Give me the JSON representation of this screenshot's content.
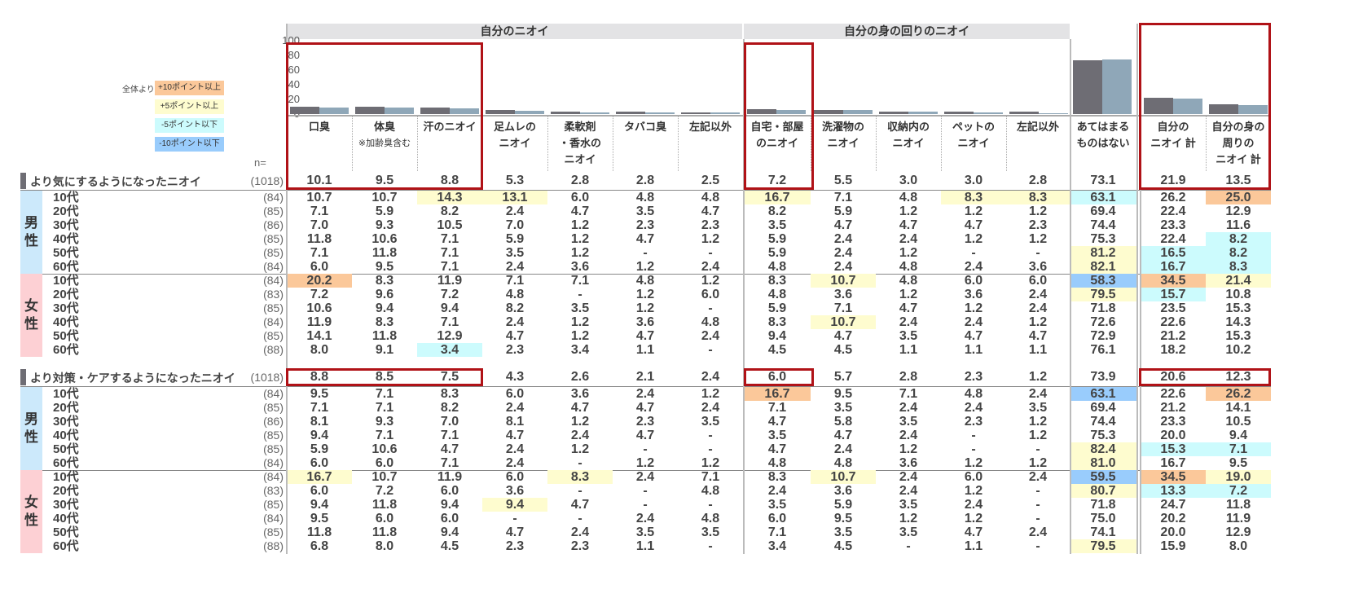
{
  "colors": {
    "series1": "#6e6d74",
    "series2": "#8fa7b8",
    "orange": "#fbc89a",
    "yellow": "#fefccf",
    "cyan": "#ccfbfd",
    "blue": "#99ccfc",
    "male_bg": "#cce9fb",
    "female_bg": "#fdd0d4",
    "highlight_box": "#b01217"
  },
  "legend": {
    "prefix": "全体より",
    "items": [
      {
        "code": "o",
        "label": "+10ポイント以上"
      },
      {
        "code": "y",
        "label": "+5ポイント以上"
      },
      {
        "code": "c",
        "label": "-5ポイント以下"
      },
      {
        "code": "b",
        "label": "-10ポイント以下"
      }
    ]
  },
  "groups": [
    {
      "label": "自分のニオイ"
    },
    {
      "label": "自分の身の回りのニオイ"
    }
  ],
  "columns": [
    {
      "label": "口臭"
    },
    {
      "label": "体臭",
      "sub": "※加齢臭含む"
    },
    {
      "label": "汗のニオイ"
    },
    {
      "label": "足ムレの\nニオイ"
    },
    {
      "label": "柔軟剤\n・香水の\nニオイ"
    },
    {
      "label": "タバコ臭"
    },
    {
      "label": "左記以外"
    },
    {
      "label": "自宅・部屋\nのニオイ"
    },
    {
      "label": "洗濯物の\nニオイ"
    },
    {
      "label": "収納内の\nニオイ"
    },
    {
      "label": "ペットの\nニオイ"
    },
    {
      "label": "左記以外"
    },
    {
      "label": "あてはまる\nものはない"
    },
    {
      "label": "自分の\nニオイ 計"
    },
    {
      "label": "自分の身の\n周りの\nニオイ 計"
    }
  ],
  "n_label": "n=",
  "chart_data": {
    "type": "bar",
    "ylim": [
      0,
      100
    ],
    "yticks": [
      "100",
      "80",
      "60",
      "40",
      "20",
      "0"
    ],
    "categories": [
      "口臭",
      "体臭",
      "汗のニオイ",
      "足ムレのニオイ",
      "柔軟剤・香水のニオイ",
      "タバコ臭",
      "左記以外",
      "自宅・部屋のニオイ",
      "洗濯物のニオイ",
      "収納内のニオイ",
      "ペットのニオイ",
      "左記以外",
      "あてはまるものはない",
      "自分のニオイ 計",
      "自分の身の周りのニオイ 計"
    ],
    "series": [
      {
        "values": [
          10.1,
          9.5,
          8.8,
          5.3,
          2.8,
          2.8,
          2.5,
          7.2,
          5.5,
          3.0,
          3.0,
          2.8,
          73.1,
          21.9,
          13.5
        ]
      },
      {
        "values": [
          8.8,
          8.5,
          7.5,
          4.3,
          2.6,
          2.1,
          2.4,
          6.0,
          5.7,
          2.8,
          2.3,
          1.2,
          73.9,
          20.6,
          12.3
        ]
      }
    ]
  },
  "sections": [
    {
      "title": "より気にするようになったニオイ",
      "n": "(1018)",
      "values": [
        "10.1",
        "9.5",
        "8.8",
        "5.3",
        "2.8",
        "2.8",
        "2.5",
        "7.2",
        "5.5",
        "3.0",
        "3.0",
        "2.8",
        "73.1",
        "21.9",
        "13.5"
      ],
      "genders": [
        {
          "label": "男\n性",
          "rows": [
            {
              "age": "10代",
              "n": "(84)",
              "values": [
                "10.7",
                "10.7",
                "14.3",
                "13.1",
                "6.0",
                "4.8",
                "4.8",
                "16.7",
                "7.1",
                "4.8",
                "8.3",
                "8.3",
                "63.1",
                "26.2",
                "25.0"
              ],
              "hl": [
                "",
                "",
                "y",
                "y",
                "",
                "",
                "",
                "y",
                "",
                "",
                "y",
                "y",
                "c",
                "",
                "o"
              ]
            },
            {
              "age": "20代",
              "n": "(85)",
              "values": [
                "7.1",
                "5.9",
                "8.2",
                "2.4",
                "4.7",
                "3.5",
                "4.7",
                "8.2",
                "5.9",
                "1.2",
                "1.2",
                "1.2",
                "69.4",
                "22.4",
                "12.9"
              ],
              "hl": []
            },
            {
              "age": "30代",
              "n": "(86)",
              "values": [
                "7.0",
                "9.3",
                "10.5",
                "7.0",
                "1.2",
                "2.3",
                "2.3",
                "3.5",
                "4.7",
                "4.7",
                "4.7",
                "2.3",
                "74.4",
                "23.3",
                "11.6"
              ],
              "hl": []
            },
            {
              "age": "40代",
              "n": "(85)",
              "values": [
                "11.8",
                "10.6",
                "7.1",
                "5.9",
                "1.2",
                "4.7",
                "1.2",
                "5.9",
                "2.4",
                "2.4",
                "1.2",
                "1.2",
                "75.3",
                "22.4",
                "8.2"
              ],
              "hl": [
                "",
                "",
                "",
                "",
                "",
                "",
                "",
                "",
                "",
                "",
                "",
                "",
                "",
                "",
                "c"
              ]
            },
            {
              "age": "50代",
              "n": "(85)",
              "values": [
                "7.1",
                "11.8",
                "7.1",
                "3.5",
                "1.2",
                "-",
                "-",
                "5.9",
                "2.4",
                "1.2",
                "-",
                "-",
                "81.2",
                "16.5",
                "8.2"
              ],
              "hl": [
                "",
                "",
                "",
                "",
                "",
                "",
                "",
                "",
                "",
                "",
                "",
                "",
                "y",
                "c",
                "c"
              ]
            },
            {
              "age": "60代",
              "n": "(84)",
              "values": [
                "6.0",
                "9.5",
                "7.1",
                "2.4",
                "3.6",
                "1.2",
                "2.4",
                "4.8",
                "2.4",
                "4.8",
                "2.4",
                "3.6",
                "82.1",
                "16.7",
                "8.3"
              ],
              "hl": [
                "",
                "",
                "",
                "",
                "",
                "",
                "",
                "",
                "",
                "",
                "",
                "",
                "y",
                "c",
                "c"
              ]
            }
          ]
        },
        {
          "label": "女\n性",
          "rows": [
            {
              "age": "10代",
              "n": "(84)",
              "values": [
                "20.2",
                "8.3",
                "11.9",
                "7.1",
                "7.1",
                "4.8",
                "1.2",
                "8.3",
                "10.7",
                "4.8",
                "6.0",
                "6.0",
                "58.3",
                "34.5",
                "21.4"
              ],
              "hl": [
                "o",
                "",
                "",
                "",
                "",
                "",
                "",
                "",
                "y",
                "",
                "",
                "",
                "b",
                "o",
                "y"
              ]
            },
            {
              "age": "20代",
              "n": "(83)",
              "values": [
                "7.2",
                "9.6",
                "7.2",
                "4.8",
                "-",
                "1.2",
                "6.0",
                "4.8",
                "3.6",
                "1.2",
                "3.6",
                "2.4",
                "79.5",
                "15.7",
                "10.8"
              ],
              "hl": [
                "",
                "",
                "",
                "",
                "",
                "",
                "",
                "",
                "",
                "",
                "",
                "",
                "y",
                "c",
                ""
              ]
            },
            {
              "age": "30代",
              "n": "(85)",
              "values": [
                "10.6",
                "9.4",
                "9.4",
                "8.2",
                "3.5",
                "1.2",
                "-",
                "5.9",
                "7.1",
                "4.7",
                "1.2",
                "2.4",
                "71.8",
                "23.5",
                "15.3"
              ],
              "hl": []
            },
            {
              "age": "40代",
              "n": "(84)",
              "values": [
                "11.9",
                "8.3",
                "7.1",
                "2.4",
                "1.2",
                "3.6",
                "4.8",
                "8.3",
                "10.7",
                "2.4",
                "2.4",
                "1.2",
                "72.6",
                "22.6",
                "14.3"
              ],
              "hl": [
                "",
                "",
                "",
                "",
                "",
                "",
                "",
                "",
                "y"
              ]
            },
            {
              "age": "50代",
              "n": "(85)",
              "values": [
                "14.1",
                "11.8",
                "12.9",
                "4.7",
                "1.2",
                "4.7",
                "2.4",
                "9.4",
                "4.7",
                "3.5",
                "4.7",
                "4.7",
                "72.9",
                "21.2",
                "15.3"
              ],
              "hl": []
            },
            {
              "age": "60代",
              "n": "(88)",
              "values": [
                "8.0",
                "9.1",
                "3.4",
                "2.3",
                "3.4",
                "1.1",
                "-",
                "4.5",
                "4.5",
                "1.1",
                "1.1",
                "1.1",
                "76.1",
                "18.2",
                "10.2"
              ],
              "hl": [
                "",
                "",
                "c"
              ]
            }
          ]
        }
      ]
    },
    {
      "title": "より対策・ケアするようになったニオイ",
      "n": "(1018)",
      "values": [
        "8.8",
        "8.5",
        "7.5",
        "4.3",
        "2.6",
        "2.1",
        "2.4",
        "6.0",
        "5.7",
        "2.8",
        "2.3",
        "1.2",
        "73.9",
        "20.6",
        "12.3"
      ],
      "genders": [
        {
          "label": "男\n性",
          "rows": [
            {
              "age": "10代",
              "n": "(84)",
              "values": [
                "9.5",
                "7.1",
                "8.3",
                "6.0",
                "3.6",
                "2.4",
                "1.2",
                "16.7",
                "9.5",
                "7.1",
                "4.8",
                "2.4",
                "63.1",
                "22.6",
                "26.2"
              ],
              "hl": [
                "",
                "",
                "",
                "",
                "",
                "",
                "",
                "o",
                "",
                "",
                "",
                "",
                "b",
                "",
                "o"
              ]
            },
            {
              "age": "20代",
              "n": "(85)",
              "values": [
                "7.1",
                "7.1",
                "8.2",
                "2.4",
                "4.7",
                "4.7",
                "2.4",
                "7.1",
                "3.5",
                "2.4",
                "2.4",
                "3.5",
                "69.4",
                "21.2",
                "14.1"
              ],
              "hl": []
            },
            {
              "age": "30代",
              "n": "(86)",
              "values": [
                "8.1",
                "9.3",
                "7.0",
                "8.1",
                "1.2",
                "2.3",
                "3.5",
                "4.7",
                "5.8",
                "3.5",
                "2.3",
                "1.2",
                "74.4",
                "23.3",
                "10.5"
              ],
              "hl": []
            },
            {
              "age": "40代",
              "n": "(85)",
              "values": [
                "9.4",
                "7.1",
                "7.1",
                "4.7",
                "2.4",
                "4.7",
                "-",
                "3.5",
                "4.7",
                "2.4",
                "-",
                "1.2",
                "75.3",
                "20.0",
                "9.4"
              ],
              "hl": []
            },
            {
              "age": "50代",
              "n": "(85)",
              "values": [
                "5.9",
                "10.6",
                "4.7",
                "2.4",
                "1.2",
                "-",
                "-",
                "4.7",
                "2.4",
                "1.2",
                "-",
                "-",
                "82.4",
                "15.3",
                "7.1"
              ],
              "hl": [
                "",
                "",
                "",
                "",
                "",
                "",
                "",
                "",
                "",
                "",
                "",
                "",
                "y",
                "c",
                "c"
              ]
            },
            {
              "age": "60代",
              "n": "(84)",
              "values": [
                "6.0",
                "6.0",
                "7.1",
                "2.4",
                "-",
                "1.2",
                "1.2",
                "4.8",
                "4.8",
                "3.6",
                "1.2",
                "1.2",
                "81.0",
                "16.7",
                "9.5"
              ],
              "hl": [
                "",
                "",
                "",
                "",
                "",
                "",
                "",
                "",
                "",
                "",
                "",
                "",
                "y"
              ]
            }
          ]
        },
        {
          "label": "女\n性",
          "rows": [
            {
              "age": "10代",
              "n": "(84)",
              "values": [
                "16.7",
                "10.7",
                "11.9",
                "6.0",
                "8.3",
                "2.4",
                "7.1",
                "8.3",
                "10.7",
                "2.4",
                "6.0",
                "2.4",
                "59.5",
                "34.5",
                "19.0"
              ],
              "hl": [
                "y",
                "",
                "",
                "",
                "y",
                "",
                "",
                "",
                "y",
                "",
                "",
                "",
                "b",
                "o",
                "y"
              ]
            },
            {
              "age": "20代",
              "n": "(83)",
              "values": [
                "6.0",
                "7.2",
                "6.0",
                "3.6",
                "-",
                "-",
                "4.8",
                "2.4",
                "3.6",
                "2.4",
                "1.2",
                "-",
                "80.7",
                "13.3",
                "7.2"
              ],
              "hl": [
                "",
                "",
                "",
                "",
                "",
                "",
                "",
                "",
                "",
                "",
                "",
                "",
                "y",
                "c",
                "c"
              ]
            },
            {
              "age": "30代",
              "n": "(85)",
              "values": [
                "9.4",
                "11.8",
                "9.4",
                "9.4",
                "4.7",
                "-",
                "-",
                "3.5",
                "5.9",
                "3.5",
                "2.4",
                "-",
                "71.8",
                "24.7",
                "11.8"
              ],
              "hl": [
                "",
                "",
                "",
                "y"
              ]
            },
            {
              "age": "40代",
              "n": "(84)",
              "values": [
                "9.5",
                "6.0",
                "6.0",
                "-",
                "-",
                "2.4",
                "4.8",
                "6.0",
                "9.5",
                "1.2",
                "1.2",
                "-",
                "75.0",
                "20.2",
                "11.9"
              ],
              "hl": []
            },
            {
              "age": "50代",
              "n": "(85)",
              "values": [
                "11.8",
                "11.8",
                "9.4",
                "4.7",
                "2.4",
                "3.5",
                "3.5",
                "7.1",
                "3.5",
                "3.5",
                "4.7",
                "2.4",
                "74.1",
                "20.0",
                "12.9"
              ],
              "hl": []
            },
            {
              "age": "60代",
              "n": "(88)",
              "values": [
                "6.8",
                "8.0",
                "4.5",
                "2.3",
                "2.3",
                "1.1",
                "-",
                "3.4",
                "4.5",
                "-",
                "1.1",
                "-",
                "79.5",
                "15.9",
                "8.0"
              ],
              "hl": [
                "",
                "",
                "",
                "",
                "",
                "",
                "",
                "",
                "",
                "",
                "",
                "",
                "y"
              ]
            }
          ]
        }
      ]
    }
  ]
}
